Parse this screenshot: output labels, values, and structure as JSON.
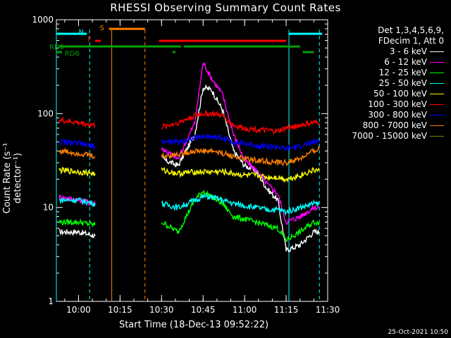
{
  "chart_data": {
    "type": "line",
    "title": "RHESSI Observing Summary Count Rates",
    "xlabel": "Start Time (18-Dec-13 09:52:22)",
    "ylabel": "Count Rate (s⁻¹ detector⁻¹)",
    "yscale": "log",
    "ylim": [
      1,
      1000
    ],
    "xlim": [
      "09:52",
      "11:30"
    ],
    "x_ticks": [
      "10:00",
      "10:15",
      "10:30",
      "10:45",
      "11:00",
      "11:15",
      "11:30"
    ],
    "y_ticks": [
      "1",
      "10",
      "100",
      "1000"
    ],
    "legend_header": [
      "Det 1,3,4,5,6,9,",
      "FDecim 1, Att 0"
    ],
    "legend_position": "right",
    "series": [
      {
        "name": "3 - 6 keV",
        "color": "#ffffff",
        "x": [
          "09:53",
          "10:00",
          "10:06",
          "10:11",
          "10:25",
          "10:30",
          "10:36",
          "10:42",
          "10:45",
          "10:48",
          "10:52",
          "10:56",
          "11:00",
          "11:04",
          "11:08",
          "11:12",
          "11:15",
          "11:20",
          "11:25",
          "11:27"
        ],
        "values": [
          5.5,
          5.5,
          5,
          null,
          null,
          33,
          28,
          60,
          190,
          180,
          110,
          40,
          28,
          25,
          16,
          12,
          3.5,
          4,
          5.5,
          5.5
        ]
      },
      {
        "name": "6 - 12 keV",
        "color": "#ff00ff",
        "x": [
          "09:53",
          "10:00",
          "10:06",
          "10:11",
          "10:25",
          "10:30",
          "10:36",
          "10:42",
          "10:45",
          "10:48",
          "10:52",
          "10:56",
          "11:00",
          "11:04",
          "11:08",
          "11:12",
          "11:15",
          "11:20",
          "11:25",
          "11:27"
        ],
        "values": [
          13,
          12,
          11,
          null,
          null,
          43,
          33,
          80,
          350,
          240,
          160,
          60,
          32,
          25,
          18,
          14,
          7,
          8,
          10,
          10
        ]
      },
      {
        "name": "12 - 25 keV",
        "color": "#00ff00",
        "x": [
          "09:53",
          "10:00",
          "10:06",
          "10:11",
          "10:25",
          "10:30",
          "10:36",
          "10:42",
          "10:45",
          "10:48",
          "10:52",
          "10:56",
          "11:00",
          "11:04",
          "11:08",
          "11:12",
          "11:15",
          "11:20",
          "11:25",
          "11:27"
        ],
        "values": [
          7,
          7,
          6.5,
          null,
          null,
          7,
          5.5,
          12,
          15,
          13,
          11,
          8,
          7.5,
          7,
          6.5,
          6,
          4.5,
          5.5,
          7,
          7
        ]
      },
      {
        "name": "25 - 50 keV",
        "color": "#00ffff",
        "x": [
          "09:53",
          "10:00",
          "10:06",
          "10:11",
          "10:25",
          "10:30",
          "10:36",
          "10:42",
          "10:45",
          "10:48",
          "10:52",
          "10:56",
          "11:00",
          "11:04",
          "11:08",
          "11:12",
          "11:15",
          "11:20",
          "11:25",
          "11:27"
        ],
        "values": [
          12,
          12,
          11,
          null,
          null,
          11,
          10,
          12,
          13,
          13,
          12,
          11,
          10.5,
          10,
          9.5,
          9.5,
          9,
          10,
          11,
          11
        ]
      },
      {
        "name": "50 - 100 keV",
        "color": "#ffff00",
        "x": [
          "09:53",
          "10:00",
          "10:06",
          "10:11",
          "10:25",
          "10:30",
          "10:36",
          "10:42",
          "10:45",
          "10:48",
          "10:52",
          "10:56",
          "11:00",
          "11:04",
          "11:08",
          "11:12",
          "11:15",
          "11:20",
          "11:25",
          "11:27"
        ],
        "values": [
          25,
          24,
          23,
          null,
          null,
          25,
          23,
          24,
          24,
          24,
          24,
          23,
          22,
          22,
          21,
          21,
          20,
          22,
          25,
          25
        ]
      },
      {
        "name": "100 - 300 keV",
        "color": "#ff0000",
        "x": [
          "09:53",
          "10:00",
          "10:06",
          "10:11",
          "10:25",
          "10:30",
          "10:36",
          "10:42",
          "10:45",
          "10:48",
          "10:52",
          "10:56",
          "11:00",
          "11:04",
          "11:08",
          "11:12",
          "11:15",
          "11:20",
          "11:25",
          "11:27"
        ],
        "values": [
          85,
          80,
          75,
          null,
          null,
          72,
          80,
          95,
          100,
          100,
          95,
          75,
          70,
          68,
          66,
          65,
          70,
          75,
          80,
          80
        ]
      },
      {
        "name": "300 - 800 keV",
        "color": "#0000ff",
        "x": [
          "09:53",
          "10:00",
          "10:06",
          "10:11",
          "10:25",
          "10:30",
          "10:36",
          "10:42",
          "10:45",
          "10:48",
          "10:52",
          "10:56",
          "11:00",
          "11:04",
          "11:08",
          "11:12",
          "11:15",
          "11:20",
          "11:25",
          "11:27"
        ],
        "values": [
          50,
          48,
          45,
          null,
          null,
          50,
          50,
          55,
          57,
          57,
          55,
          50,
          48,
          46,
          45,
          44,
          42,
          45,
          50,
          50
        ]
      },
      {
        "name": "800 - 7000 keV",
        "color": "#ff8000",
        "x": [
          "09:53",
          "10:00",
          "10:06",
          "10:11",
          "10:25",
          "10:30",
          "10:36",
          "10:42",
          "10:45",
          "10:48",
          "10:52",
          "10:56",
          "11:00",
          "11:04",
          "11:08",
          "11:12",
          "11:15",
          "11:20",
          "11:25",
          "11:27"
        ],
        "values": [
          40,
          38,
          35,
          null,
          null,
          35,
          37,
          40,
          40,
          40,
          38,
          35,
          33,
          32,
          31,
          30,
          30,
          33,
          40,
          42
        ]
      },
      {
        "name": "7000 - 15000 keV",
        "color": "#808000",
        "x": [],
        "values": []
      }
    ],
    "flag_bars": [
      {
        "label": "N",
        "color": "#00ffff",
        "segments": [
          [
            "09:52",
            "10:03"
          ],
          [
            "11:16",
            "11:28"
          ]
        ]
      },
      {
        "label": "F",
        "color": "#ff0000",
        "segments": [
          [
            "10:06",
            "10:08"
          ],
          [
            "10:29",
            "11:15"
          ]
        ]
      },
      {
        "label": "S",
        "color": "#ff8000",
        "segments": [
          [
            "10:11",
            "10:24"
          ]
        ]
      },
      {
        "label": "RD0",
        "color": "#00a000",
        "segments": [
          [
            "09:53",
            "10:37"
          ],
          [
            "10:38",
            "11:20"
          ]
        ]
      },
      {
        "label": "RD6",
        "color": "#00a000",
        "segments": [
          [
            "09:52",
            "09:54"
          ],
          [
            "10:34",
            "10:35"
          ],
          [
            "11:21",
            "11:25"
          ]
        ]
      }
    ],
    "vertical_markers": [
      {
        "time": "09:52",
        "color": "#00ffff",
        "style": "solid"
      },
      {
        "time": "10:04",
        "color": "#00ffff",
        "style": "dashed"
      },
      {
        "time": "10:12",
        "color": "#ff8000",
        "style": "solid"
      },
      {
        "time": "10:24",
        "color": "#ff8000",
        "style": "dashed"
      },
      {
        "time": "11:16",
        "color": "#00ffff",
        "style": "solid"
      },
      {
        "time": "11:27",
        "color": "#00ffff",
        "style": "dashed"
      }
    ]
  },
  "timestamp": "25-Oct-2021 10:50"
}
